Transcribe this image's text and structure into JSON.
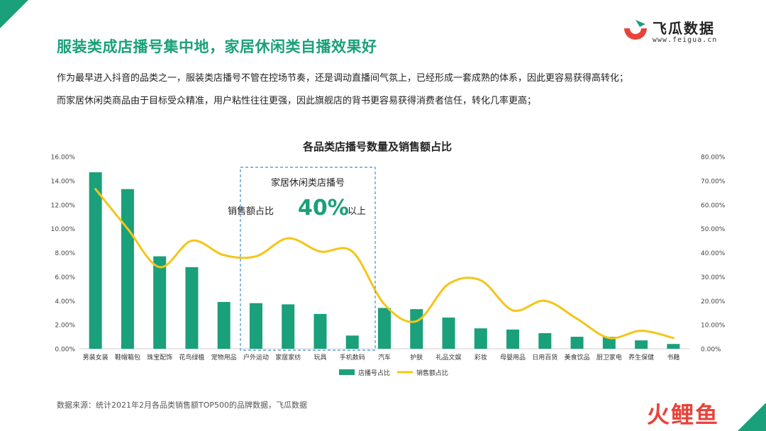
{
  "header": {
    "title": "服装类成店播号集中地，家居休闲类自播效果好",
    "logo_name": "飞瓜数据",
    "logo_url": "www.feigua.cn"
  },
  "description": {
    "line1": "作为最早进入抖音的品类之一，服装类店播号不管在控场节奏，还是调动直播间气氛上，已经形成一套成熟的体系，因此更容易获得高转化；",
    "line2": "而家居休闲类商品由于目标受众精准，用户粘性往往更强，因此旗舰店的背书更容易获得消费者信任，转化几率更高；"
  },
  "callout": {
    "line1": "家居休闲类店播号",
    "prefix": "销售额占比",
    "big": "40%",
    "suffix": "以上"
  },
  "footer": {
    "source": "数据来源：统计2021年2月各品类销售额TOP500的品牌数据，飞瓜数据",
    "brand": "火鲤鱼"
  },
  "colors": {
    "bar": "#1aa07a",
    "line": "#f5c518",
    "title": "#1aa07a",
    "callout_border": "#3f8fd0"
  },
  "chart_data": {
    "type": "bar",
    "title": "各品类店播号数量及销售额占比",
    "categories": [
      "男装女装",
      "鞋帽箱包",
      "珠宝配饰",
      "花鸟绿植",
      "宠物用品",
      "户外运动",
      "家居家纺",
      "玩具",
      "手机数码",
      "汽车",
      "护肤",
      "礼品文娱",
      "彩妆",
      "母婴用品",
      "日用百货",
      "美食饮品",
      "厨卫家电",
      "养生保健",
      "书籍"
    ],
    "series": [
      {
        "name": "店播号占比",
        "type": "bar",
        "axis": "left",
        "values": [
          14.7,
          13.3,
          7.7,
          6.8,
          3.9,
          3.8,
          3.7,
          2.9,
          1.1,
          3.4,
          3.3,
          2.6,
          1.7,
          1.6,
          1.3,
          1.0,
          1.0,
          0.7,
          0.4
        ]
      },
      {
        "name": "销售额占比",
        "type": "line",
        "axis": "right",
        "values": [
          66.5,
          50.0,
          34.0,
          45.0,
          39.0,
          38.5,
          46.0,
          40.5,
          40.5,
          18.5,
          11.5,
          27.0,
          28.5,
          16.0,
          20.0,
          12.5,
          4.5,
          7.5,
          4.5
        ]
      }
    ],
    "ylim_left": [
      0,
      16
    ],
    "ylim_right": [
      0,
      80
    ],
    "yticks_left": [
      "0.00%",
      "2.00%",
      "4.00%",
      "6.00%",
      "8.00%",
      "10.00%",
      "12.00%",
      "14.00%",
      "16.00%"
    ],
    "yticks_right": [
      "0.00%",
      "10.00%",
      "20.00%",
      "30.00%",
      "40.00%",
      "50.00%",
      "60.00%",
      "70.00%",
      "80.00%"
    ],
    "legend_position": "bottom",
    "grid": false
  }
}
